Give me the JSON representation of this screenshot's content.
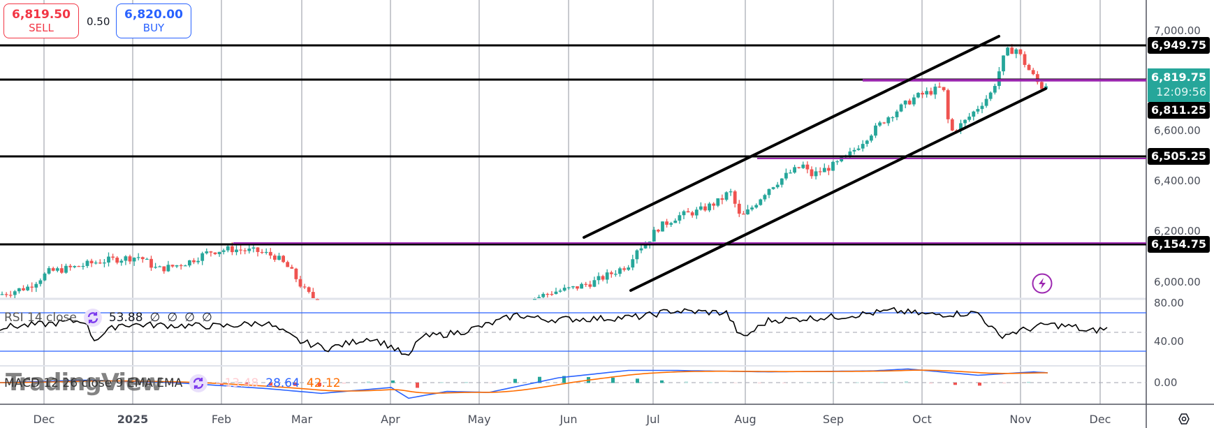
{
  "trade": {
    "sell_price": "6,819.50",
    "sell_label": "SELL",
    "spread": "0.50",
    "buy_price": "6,820.00",
    "buy_label": "BUY"
  },
  "price_axis": {
    "labels": [
      "7,000.00",
      "6,600.00",
      "6,400.00",
      "6,200.00",
      "6,000.00"
    ],
    "tags": [
      {
        "text": "6,949.75",
        "kind": "level"
      },
      {
        "text": "6,819.75",
        "sub": "12:09:56",
        "kind": "last"
      },
      {
        "text": "6,811.25",
        "kind": "level"
      },
      {
        "text": "6,505.25",
        "kind": "level"
      },
      {
        "text": "6,154.75",
        "kind": "level"
      }
    ]
  },
  "time_axis": [
    "Dec",
    "2025",
    "Feb",
    "Mar",
    "Apr",
    "May",
    "Jun",
    "Jul",
    "Aug",
    "Sep",
    "Oct",
    "Nov",
    "Dec"
  ],
  "rsi": {
    "title": "RSI 14 close",
    "value": "53.88",
    "extras": [
      "∅",
      "∅",
      "∅",
      "∅"
    ],
    "axis": [
      "80.00",
      "40.00"
    ]
  },
  "macd": {
    "title": "MACD 12 26 close 9 EMA EMA",
    "hist": "−13.48",
    "macd": "28.64",
    "signal": "42.12",
    "axis": [
      "0.00"
    ]
  },
  "watermark": "TradingView",
  "colors": {
    "up": "#26a69a",
    "down": "#ef5350",
    "sell": "#f23645",
    "buy": "#2962ff",
    "last_price": "#26a69a",
    "purple": "#9c27b0",
    "rsi_band": "#2962ff",
    "macd_line": "#2962ff",
    "signal_line": "#ff6d00"
  },
  "chart_data": {
    "type": "candlestick",
    "title": "",
    "xlabel": "",
    "ylabel": "",
    "x_ticks": [
      "Dec",
      "2025",
      "Feb",
      "Mar",
      "Apr",
      "May",
      "Jun",
      "Jul",
      "Aug",
      "Sep",
      "Oct",
      "Nov",
      "Dec"
    ],
    "y_ticks": [
      6000,
      6200,
      6400,
      6600,
      7000
    ],
    "ylim": [
      5940,
      7050
    ],
    "horizontal_levels": [
      6949.75,
      6811.25,
      6505.25,
      6154.75
    ],
    "purple_levels": [
      6819.75,
      6505.25,
      6154.75
    ],
    "last_price": 6819.75,
    "countdown": "12:09:56",
    "channel": {
      "upper": [
        [
          "Jun 10",
          6218
        ],
        [
          "Oct 27",
          6985
        ]
      ],
      "lower": [
        [
          "Jun 24",
          5995
        ],
        [
          "Nov 7",
          6792
        ]
      ]
    },
    "approx_closes": {
      "Dec": 6050,
      "Jan": 6080,
      "Feb": 6110,
      "Mar": 5950,
      "Jun": 6050,
      "Jul": 6300,
      "Aug": 6350,
      "Sep": 6460,
      "Oct": 6700,
      "Nov": 6760,
      "Nov 7": 6819.75
    },
    "rsi": {
      "value": 53.88,
      "bands": [
        70,
        30
      ],
      "mid": 50,
      "ylim": [
        20,
        85
      ]
    },
    "macd": {
      "histogram": -13.48,
      "macd": 28.64,
      "signal": 42.12
    }
  }
}
